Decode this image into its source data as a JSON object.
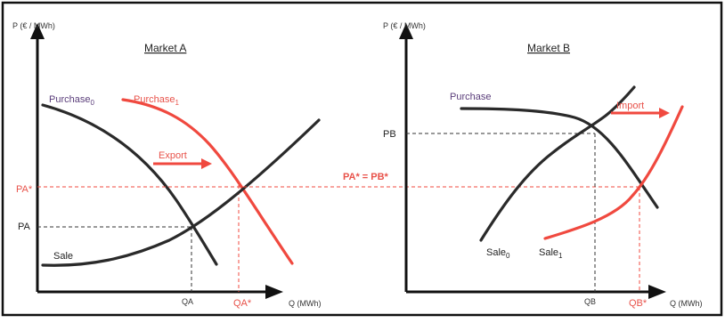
{
  "market_a": {
    "title": "Market A",
    "y_axis_label": "P (€ / MWh)",
    "x_axis_label": "Q (MWh)",
    "purchase0_label": "Purchase",
    "purchase0_sub": "0",
    "purchase1_label": "Purchase",
    "purchase1_sub": "1",
    "export_label": "Export",
    "sale_label": "Sale",
    "pa_label": "PA",
    "pa_star_label": "PA*",
    "qa_label": "QA",
    "qa_star_label": "QA*"
  },
  "market_b": {
    "title": "Market B",
    "y_axis_label": "P (€ / MWh)",
    "x_axis_label": "Q (MWh)",
    "purchase_label": "Purchase",
    "import_label": "Import",
    "sale0_label": "Sale",
    "sale0_sub": "0",
    "sale1_label": "Sale",
    "sale1_sub": "1",
    "pb_label": "PB",
    "qb_label": "QB",
    "qb_star_label": "QB*"
  },
  "shared": {
    "equilibrium_label": "PA* = PB*"
  },
  "colors": {
    "red": "#f0493f",
    "dark": "#2a2a2a",
    "purple": "#5a3d7a"
  }
}
